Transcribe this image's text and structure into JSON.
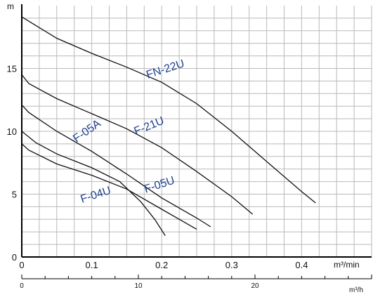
{
  "chart_data": {
    "type": "line",
    "title": "",
    "ylabel": "m",
    "xlabel": "m³/min",
    "x2label": "m³/h",
    "xlim": [
      0,
      0.5
    ],
    "ylim": [
      0,
      20
    ],
    "x2lim": [
      0,
      30
    ],
    "grid": true,
    "x_ticks": [
      {
        "value": 0,
        "label": "0"
      },
      {
        "value": 0.1,
        "label": "0.1"
      },
      {
        "value": 0.2,
        "label": "0.2"
      },
      {
        "value": 0.3,
        "label": "0.3"
      },
      {
        "value": 0.4,
        "label": "0.4"
      }
    ],
    "y_ticks": [
      {
        "value": 0,
        "label": "0"
      },
      {
        "value": 5,
        "label": "5"
      },
      {
        "value": 10,
        "label": "10"
      },
      {
        "value": 15,
        "label": "15"
      }
    ],
    "x2_ticks": [
      {
        "value": 0,
        "label": "0"
      },
      {
        "value": 10,
        "label": "10"
      },
      {
        "value": 20,
        "label": "20"
      }
    ],
    "series": [
      {
        "name": "FN-22U",
        "color": "#111111",
        "points": [
          [
            0,
            19.1
          ],
          [
            0.05,
            17.4
          ],
          [
            0.1,
            16.2
          ],
          [
            0.15,
            15.1
          ],
          [
            0.2,
            13.9
          ],
          [
            0.25,
            12.2
          ],
          [
            0.3,
            10.0
          ],
          [
            0.35,
            7.6
          ],
          [
            0.4,
            5.2
          ],
          [
            0.42,
            4.3
          ]
        ]
      },
      {
        "name": "F-21U",
        "color": "#111111",
        "points": [
          [
            0,
            14.5
          ],
          [
            0.01,
            13.8
          ],
          [
            0.05,
            12.6
          ],
          [
            0.1,
            11.4
          ],
          [
            0.15,
            10.2
          ],
          [
            0.2,
            8.7
          ],
          [
            0.25,
            6.8
          ],
          [
            0.3,
            4.8
          ],
          [
            0.33,
            3.4
          ]
        ]
      },
      {
        "name": "F-05A",
        "color": "#111111",
        "points": [
          [
            0,
            10.0
          ],
          [
            0.02,
            9.1
          ],
          [
            0.05,
            8.2
          ],
          [
            0.1,
            7.1
          ],
          [
            0.14,
            6.0
          ],
          [
            0.17,
            4.4
          ],
          [
            0.19,
            3.0
          ],
          [
            0.205,
            1.7
          ]
        ]
      },
      {
        "name": "F-05U",
        "color": "#111111",
        "points": [
          [
            0,
            12.1
          ],
          [
            0.01,
            11.5
          ],
          [
            0.05,
            10.0
          ],
          [
            0.1,
            8.4
          ],
          [
            0.15,
            6.6
          ],
          [
            0.2,
            4.7
          ],
          [
            0.25,
            3.1
          ],
          [
            0.27,
            2.4
          ]
        ]
      },
      {
        "name": "F-04U",
        "color": "#111111",
        "points": [
          [
            0,
            9.0
          ],
          [
            0.01,
            8.5
          ],
          [
            0.05,
            7.4
          ],
          [
            0.1,
            6.5
          ],
          [
            0.15,
            5.4
          ],
          [
            0.2,
            3.8
          ],
          [
            0.25,
            2.2
          ]
        ]
      }
    ],
    "labels": [
      {
        "text": "FN-22U",
        "x": 0.18,
        "y": 14.2,
        "angle": -18
      },
      {
        "text": "F-21U",
        "x": 0.163,
        "y": 9.7,
        "angle": -22
      },
      {
        "text": "F-05A",
        "x": 0.078,
        "y": 9.1,
        "angle": -35
      },
      {
        "text": "F-05U",
        "x": 0.177,
        "y": 5.1,
        "angle": -18
      },
      {
        "text": "F-04U",
        "x": 0.086,
        "y": 4.3,
        "angle": -18
      }
    ]
  }
}
